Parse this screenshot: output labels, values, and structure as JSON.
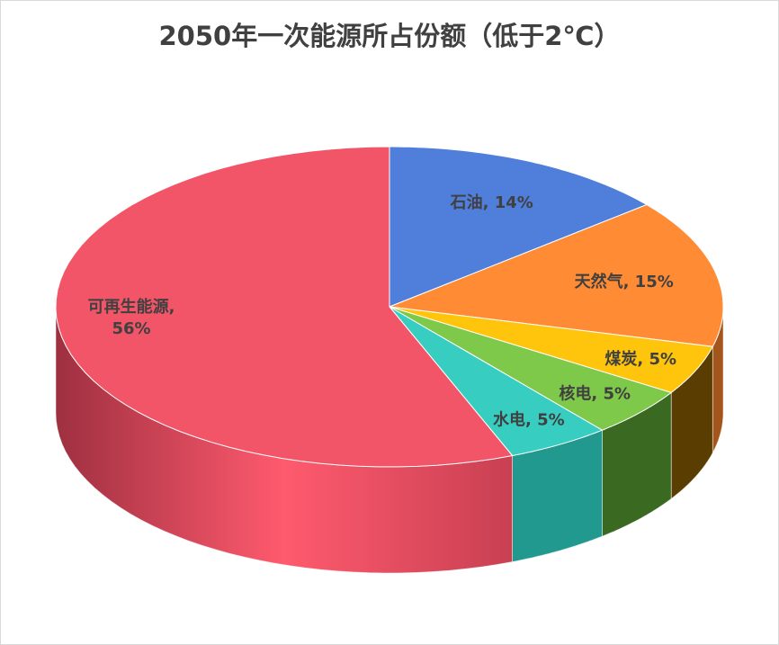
{
  "chart_data": {
    "type": "pie",
    "style": "3d",
    "title": "2050年一次能源所占份额（低于2℃）",
    "legend": "none",
    "slices": [
      {
        "label": "石油",
        "value": 14,
        "data_label": "石油, 14%",
        "color": "#4F7FDB",
        "side": "#2f5296"
      },
      {
        "label": "天然气",
        "value": 15,
        "data_label": "天然气, 15%",
        "color": "#FF8C35",
        "side": "#a4551b"
      },
      {
        "label": "煤炭",
        "value": 5,
        "data_label": "煤炭, 5%",
        "color": "#FFC40C",
        "side": "#5a3d00"
      },
      {
        "label": "核电",
        "value": 5,
        "data_label": "核电, 5%",
        "color": "#7EC84A",
        "side": "#3a6a22"
      },
      {
        "label": "水电",
        "value": 5,
        "data_label": "水电, 5%",
        "color": "#37CDC1",
        "side": "#22998e"
      },
      {
        "label": "可再生能源",
        "value": 56,
        "data_label": "可再生能源,\n56%",
        "color": "#F25468",
        "side": "#d64458"
      }
    ]
  }
}
